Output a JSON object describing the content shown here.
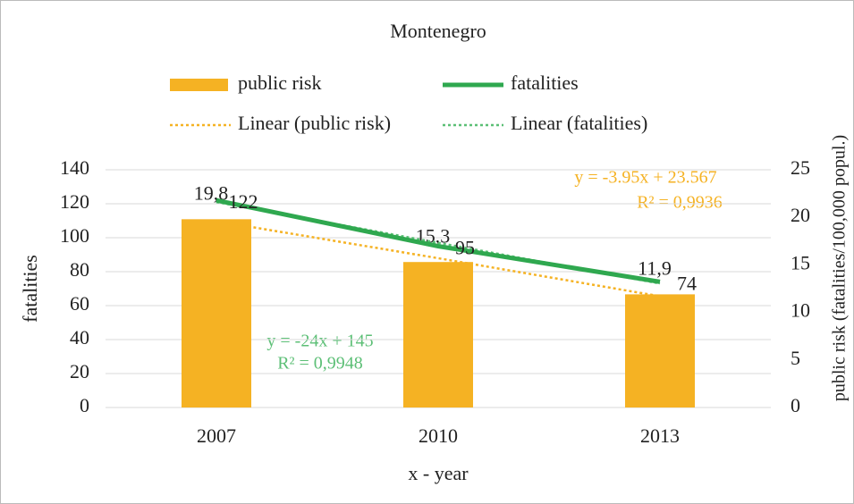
{
  "chart_data": {
    "type": "bar-line",
    "title": "Montenegro",
    "categories": [
      "2007",
      "2010",
      "2013"
    ],
    "series": [
      {
        "name": "public risk",
        "style": "bar",
        "axis": "y2",
        "color": "#f5b223",
        "values": [
          19.8,
          15.3,
          11.9
        ],
        "value_labels": [
          "19,8",
          "15,3",
          "11,9"
        ]
      },
      {
        "name": "fatalities",
        "style": "line",
        "axis": "y",
        "color": "#2fa84f",
        "values": [
          122,
          95,
          74
        ]
      },
      {
        "name": "Linear (public risk)",
        "style": "dotted",
        "axis": "y2",
        "color": "#f5b223",
        "values": [
          19.6,
          15.7,
          11.7
        ]
      },
      {
        "name": "Linear (fatalities)",
        "style": "dotted",
        "axis": "y",
        "color": "#5cbf76",
        "values": [
          121,
          97,
          73
        ]
      }
    ],
    "ylim": [
      0,
      140
    ],
    "yticks": [
      0,
      20,
      40,
      60,
      80,
      100,
      120,
      140
    ],
    "y2lim": [
      0,
      25
    ],
    "y2ticks": [
      0,
      5,
      10,
      15,
      20,
      25
    ],
    "xlabel": "x - year",
    "ylabel": "fatalities",
    "y2label": "public risk (fatalities/100,000 popul.)",
    "annotations": [
      "y = -3.95x + 23.567",
      "R² = 0,9936",
      "y = -24x + 145",
      "R² = 0,9948"
    ],
    "grid": true,
    "legend": "top"
  }
}
